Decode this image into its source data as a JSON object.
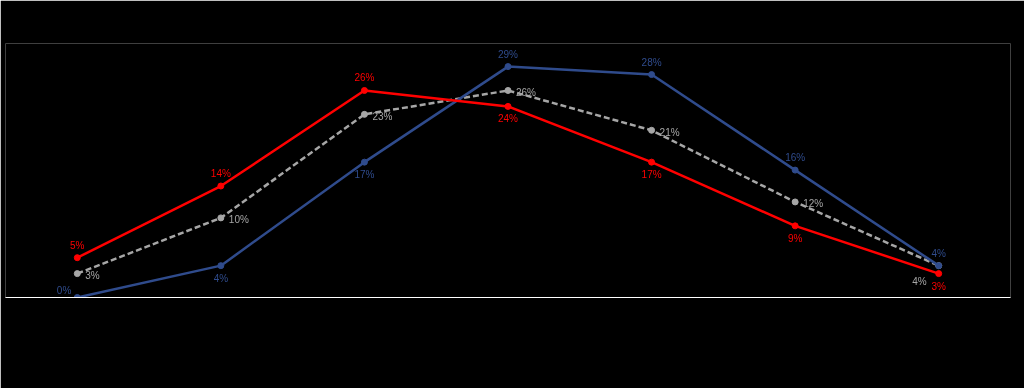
{
  "chart_data": {
    "type": "line",
    "categories": [
      null,
      null,
      null,
      null,
      null,
      null,
      null
    ],
    "series": [
      {
        "color": "#a6a6a6",
        "line_style": "dashed",
        "values": [
          3,
          10,
          23,
          26,
          21,
          12,
          4
        ],
        "value_labels": [
          "3%",
          "10%",
          "23%",
          "26%",
          "21%",
          "12%",
          "4%"
        ]
      },
      {
        "color": "#2f4b8c",
        "line_style": "solid",
        "values": [
          0,
          4,
          17,
          29,
          28,
          16,
          4
        ],
        "value_labels": [
          "0%",
          "4%",
          "17%",
          "29%",
          "28%",
          "16%",
          "4%"
        ]
      },
      {
        "color": "#ff0000",
        "line_style": "solid",
        "values": [
          5,
          14,
          26,
          24,
          17,
          9,
          3
        ],
        "value_labels": [
          "5%",
          "14%",
          "26%",
          "24%",
          "17%",
          "9%",
          "3%"
        ]
      }
    ],
    "marker": "circle",
    "grid": false
  }
}
